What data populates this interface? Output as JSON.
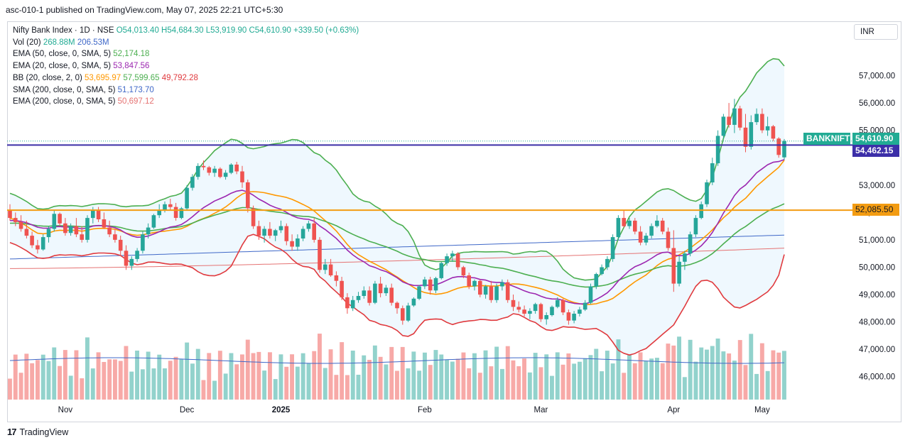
{
  "header": {
    "published": "asc-010-1 published on TradingView.com, May 07, 2025 22:21 UTC+5:30"
  },
  "legend": {
    "symbol": "Nifty Bank Index · 1D · NSE",
    "ohlc": "O54,013.40 H54,684.30 L53,919.90 C54,610.90 +339.50 (+0.63%)",
    "vol": {
      "label": "Vol (20)",
      "v1": "268.88",
      "u1": "M",
      "v2": "206.53",
      "u2": "M"
    },
    "ema50": {
      "label": "EMA (50, close, 0, SMA, 5)",
      "value": "52,174.18"
    },
    "ema20": {
      "label": "EMA (20, close, 0, SMA, 5)",
      "value": "53,847.56"
    },
    "bb": {
      "label": "BB (20, close, 2, 0)",
      "basis": "53,695.97",
      "upper": "57,599.65",
      "lower": "49,792.28"
    },
    "sma200": {
      "label": "SMA (200, close, 0, SMA, 5)",
      "value": "51,173.70"
    },
    "ema200": {
      "label": "EMA (200, close, 0, SMA, 5)",
      "value": "50,697.12"
    }
  },
  "currency_button": "INR",
  "price_tags": {
    "symbol_tag": "BANKNIFTY",
    "last_price": "54,610.90",
    "line_price": "54,462.15",
    "support_price": "52,085.50"
  },
  "footer": {
    "brand": "TradingView"
  },
  "colors": {
    "up": "#26a69a",
    "down": "#ef5350",
    "ema50": "#4caf50",
    "ema20": "#9c27b0",
    "bb_basis": "#ff9800",
    "bb_bands": "#4caf50",
    "bb_lower": "#e03a3e",
    "sma200": "#3f68c8",
    "ema200": "#e57373",
    "hline_top": "#3c2fa8",
    "hline_support": "#f39c12"
  },
  "chart_data": {
    "type": "candlestick",
    "title": "Nifty Bank Index · 1D · NSE",
    "y_ticks": [
      46000,
      47000,
      48000,
      49000,
      50000,
      51000,
      52000,
      53000,
      55000,
      56000,
      57000
    ],
    "x_ticks": [
      "Nov",
      "Dec",
      "2025",
      "Feb",
      "Mar",
      "Apr",
      "May"
    ],
    "ylim": [
      45300,
      58700
    ],
    "horizontal_lines": [
      54462.15,
      52085.5
    ],
    "last_close": 54610.9,
    "ohlc": [
      [
        52100,
        52300,
        51700,
        51800
      ],
      [
        51800,
        52000,
        51500,
        51650
      ],
      [
        51650,
        51900,
        51300,
        51400
      ],
      [
        51400,
        51700,
        51050,
        51150
      ],
      [
        51150,
        51300,
        50700,
        50800
      ],
      [
        50800,
        51000,
        50500,
        50650
      ],
      [
        50650,
        51200,
        50600,
        51100
      ],
      [
        51100,
        51500,
        50900,
        51400
      ],
      [
        51400,
        52100,
        51300,
        51950
      ],
      [
        51950,
        52000,
        51500,
        51600
      ],
      [
        51600,
        51800,
        51150,
        51250
      ],
      [
        51250,
        51600,
        51150,
        51500
      ],
      [
        51500,
        51800,
        51100,
        51200
      ],
      [
        51200,
        51500,
        50900,
        51000
      ],
      [
        51000,
        51900,
        50900,
        51800
      ],
      [
        51800,
        52200,
        51600,
        52100
      ],
      [
        52100,
        52200,
        51650,
        51750
      ],
      [
        51750,
        52000,
        51400,
        51450
      ],
      [
        51450,
        51700,
        51100,
        51200
      ],
      [
        51200,
        51400,
        50900,
        51000
      ],
      [
        51000,
        51150,
        50400,
        50600
      ],
      [
        50600,
        50800,
        49900,
        50050
      ],
      [
        50050,
        50400,
        49900,
        50300
      ],
      [
        50300,
        50700,
        50200,
        50600
      ],
      [
        50600,
        51300,
        50500,
        51200
      ],
      [
        51200,
        51600,
        51050,
        51450
      ],
      [
        51450,
        51950,
        51400,
        51900
      ],
      [
        51900,
        52300,
        51800,
        52100
      ],
      [
        52100,
        52400,
        52000,
        52300
      ],
      [
        52300,
        52500,
        52100,
        52200
      ],
      [
        52200,
        52350,
        51700,
        51800
      ],
      [
        51800,
        52200,
        51750,
        52150
      ],
      [
        52150,
        53000,
        52100,
        52900
      ],
      [
        52900,
        53400,
        52800,
        53300
      ],
      [
        53300,
        53800,
        53200,
        53700
      ],
      [
        53700,
        53900,
        53550,
        53650
      ],
      [
        53650,
        53700,
        53350,
        53450
      ],
      [
        53450,
        53700,
        53300,
        53600
      ],
      [
        53600,
        53650,
        53250,
        53300
      ],
      [
        53300,
        53550,
        53200,
        53450
      ],
      [
        53450,
        53800,
        53400,
        53750
      ],
      [
        53750,
        53850,
        53400,
        53500
      ],
      [
        53500,
        53700,
        52900,
        53100
      ],
      [
        53100,
        53200,
        52000,
        52150
      ],
      [
        52150,
        52250,
        51400,
        51500
      ],
      [
        51500,
        51700,
        51000,
        51150
      ],
      [
        51150,
        51500,
        50900,
        51400
      ],
      [
        51400,
        51650,
        51050,
        51150
      ],
      [
        51150,
        51400,
        50950,
        51350
      ],
      [
        51350,
        51700,
        51250,
        51500
      ],
      [
        51500,
        51600,
        50800,
        50950
      ],
      [
        50950,
        51200,
        50600,
        50750
      ],
      [
        50750,
        51200,
        50600,
        51050
      ],
      [
        51050,
        51500,
        50950,
        51400
      ],
      [
        51400,
        51700,
        51300,
        51600
      ],
      [
        51600,
        51800,
        50900,
        51000
      ],
      [
        51000,
        51100,
        49800,
        49900
      ],
      [
        49900,
        50300,
        49750,
        50100
      ],
      [
        50100,
        50300,
        49650,
        49700
      ],
      [
        49700,
        49850,
        49300,
        49500
      ],
      [
        49500,
        49650,
        48800,
        48900
      ],
      [
        48900,
        49050,
        48300,
        48500
      ],
      [
        48500,
        48950,
        48400,
        48800
      ],
      [
        48800,
        49100,
        48700,
        48950
      ],
      [
        48950,
        49300,
        48850,
        49150
      ],
      [
        49150,
        49300,
        48600,
        48700
      ],
      [
        48700,
        49500,
        48650,
        49400
      ],
      [
        49400,
        49650,
        48900,
        49050
      ],
      [
        49050,
        49350,
        48950,
        49250
      ],
      [
        49250,
        49400,
        48600,
        48700
      ],
      [
        48700,
        48750,
        48300,
        48500
      ],
      [
        48500,
        48600,
        47900,
        48050
      ],
      [
        48050,
        48700,
        48000,
        48600
      ],
      [
        48600,
        48900,
        48550,
        48850
      ],
      [
        48850,
        49350,
        48800,
        49300
      ],
      [
        49300,
        49650,
        49200,
        49550
      ],
      [
        49550,
        49650,
        49000,
        49150
      ],
      [
        49150,
        49650,
        49050,
        49600
      ],
      [
        49600,
        50200,
        49550,
        50150
      ],
      [
        50150,
        50500,
        50050,
        50400
      ],
      [
        50400,
        50600,
        50200,
        50500
      ],
      [
        50500,
        50550,
        49900,
        50000
      ],
      [
        50000,
        50050,
        49600,
        49700
      ],
      [
        49700,
        49800,
        49200,
        49300
      ],
      [
        49300,
        49550,
        49150,
        49500
      ],
      [
        49500,
        49550,
        48900,
        49000
      ],
      [
        49000,
        49350,
        48850,
        49300
      ],
      [
        49300,
        49500,
        48700,
        48800
      ],
      [
        48800,
        49400,
        48700,
        49300
      ],
      [
        49300,
        49550,
        49150,
        49450
      ],
      [
        49450,
        49550,
        48700,
        48800
      ],
      [
        48800,
        49000,
        48400,
        48550
      ],
      [
        48550,
        48750,
        48350,
        48450
      ],
      [
        48450,
        48600,
        48200,
        48300
      ],
      [
        48300,
        48500,
        48100,
        48400
      ],
      [
        48400,
        48700,
        48300,
        48650
      ],
      [
        48650,
        48700,
        48000,
        48100
      ],
      [
        48100,
        48350,
        47900,
        48250
      ],
      [
        48250,
        48600,
        48200,
        48550
      ],
      [
        48550,
        48900,
        48500,
        48800
      ],
      [
        48800,
        48850,
        48250,
        48350
      ],
      [
        48350,
        48450,
        47900,
        48050
      ],
      [
        48050,
        48400,
        47950,
        48300
      ],
      [
        48300,
        48550,
        48200,
        48450
      ],
      [
        48450,
        48800,
        48400,
        48700
      ],
      [
        48700,
        49400,
        48650,
        49300
      ],
      [
        49300,
        49800,
        49200,
        49750
      ],
      [
        49750,
        50100,
        49700,
        50000
      ],
      [
        50000,
        50400,
        49900,
        50300
      ],
      [
        50300,
        51200,
        50200,
        51100
      ],
      [
        51100,
        51900,
        51000,
        51800
      ],
      [
        51800,
        52100,
        51450,
        51500
      ],
      [
        51500,
        51800,
        51400,
        51700
      ],
      [
        51700,
        51800,
        51200,
        51300
      ],
      [
        51300,
        51500,
        50800,
        50900
      ],
      [
        50900,
        51250,
        50800,
        51150
      ],
      [
        51150,
        51600,
        51050,
        51500
      ],
      [
        51500,
        51900,
        51450,
        51700
      ],
      [
        51700,
        51800,
        51200,
        51300
      ],
      [
        51300,
        51450,
        50600,
        50700
      ],
      [
        50700,
        51350,
        49100,
        49400
      ],
      [
        49400,
        50400,
        49300,
        50200
      ],
      [
        50200,
        50600,
        49900,
        50500
      ],
      [
        50500,
        51300,
        50400,
        51200
      ],
      [
        51200,
        51900,
        51100,
        51800
      ],
      [
        51800,
        52400,
        51750,
        52300
      ],
      [
        52300,
        53200,
        52200,
        53100
      ],
      [
        53100,
        54000,
        53000,
        53800
      ],
      [
        53800,
        55000,
        53700,
        54800
      ],
      [
        54800,
        55600,
        54700,
        55500
      ],
      [
        55500,
        56000,
        55100,
        55200
      ],
      [
        55200,
        56150,
        54900,
        55800
      ],
      [
        55800,
        55900,
        55000,
        55100
      ],
      [
        55100,
        55600,
        54200,
        54400
      ],
      [
        54400,
        55550,
        54300,
        55300
      ],
      [
        55300,
        55800,
        55200,
        55600
      ],
      [
        55600,
        55800,
        54900,
        55000
      ],
      [
        55000,
        55500,
        54800,
        55150
      ],
      [
        55150,
        55200,
        54600,
        54700
      ],
      [
        54700,
        54750,
        54000,
        54100
      ],
      [
        54013.4,
        54684.3,
        53919.9,
        54610.9
      ]
    ]
  }
}
